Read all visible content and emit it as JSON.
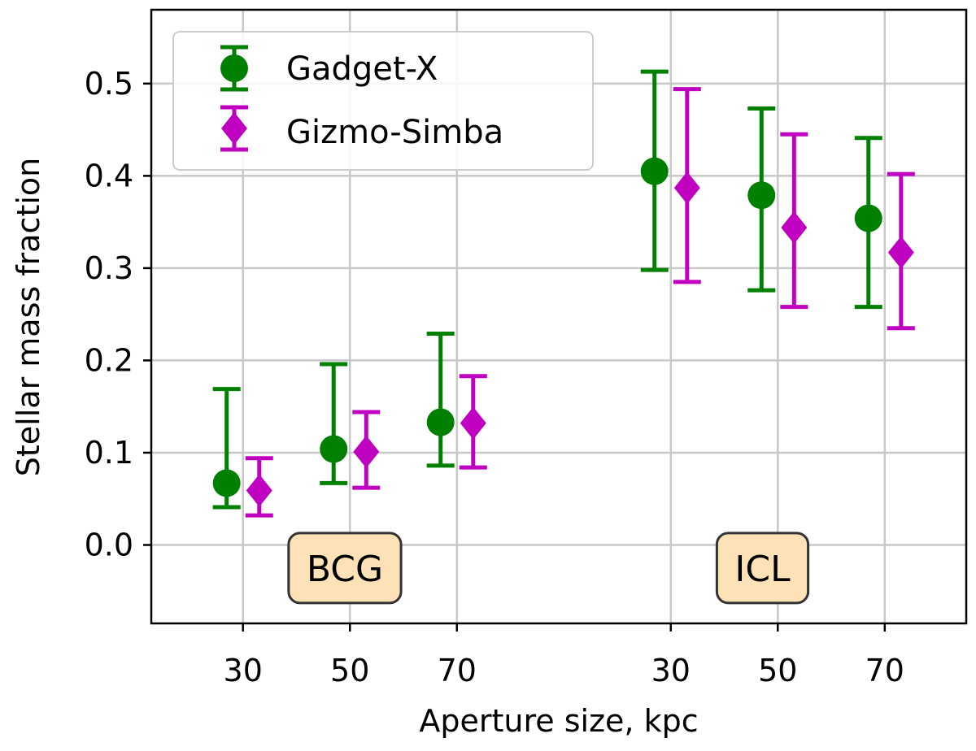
{
  "chart_data": {
    "type": "scatter",
    "title": "",
    "xlabel": "Aperture size, kpc",
    "ylabel": "Stellar mass fraction",
    "ylim": [
      -0.085,
      0.58
    ],
    "yticks": [
      0.0,
      0.1,
      0.2,
      0.3,
      0.4,
      0.5
    ],
    "ytick_labels": [
      "0.0",
      "0.1",
      "0.2",
      "0.3",
      "0.4",
      "0.5"
    ],
    "xlim": [
      0.0,
      8.0
    ],
    "xtick_positions": [
      0.9,
      1.95,
      3.0,
      5.1,
      6.15,
      7.2
    ],
    "xtick_labels": [
      "30",
      "50",
      "70",
      "30",
      "50",
      "70"
    ],
    "grid": true,
    "legend_position": "top-left",
    "groups": [
      {
        "label": "BCG",
        "label_x": 1.9,
        "label_y": -0.025
      },
      {
        "label": "ICL",
        "label_x": 6.0,
        "label_y": -0.025
      }
    ],
    "series": [
      {
        "name": "Gadget-X",
        "color": "#008000",
        "marker": "circle",
        "x": [
          0.74,
          1.79,
          2.84,
          4.94,
          5.99,
          7.04
        ],
        "values": [
          0.067,
          0.104,
          0.133,
          0.405,
          0.379,
          0.354
        ],
        "err_low": [
          0.041,
          0.067,
          0.086,
          0.298,
          0.276,
          0.258
        ],
        "err_high": [
          0.169,
          0.196,
          0.229,
          0.513,
          0.473,
          0.441
        ]
      },
      {
        "name": "Gizmo-Simba",
        "color": "#c000c0",
        "marker": "diamond",
        "x": [
          1.06,
          2.11,
          3.16,
          5.26,
          6.31,
          7.36
        ],
        "values": [
          0.059,
          0.101,
          0.132,
          0.387,
          0.344,
          0.317
        ],
        "err_low": [
          0.032,
          0.062,
          0.084,
          0.285,
          0.258,
          0.235
        ],
        "err_high": [
          0.094,
          0.144,
          0.183,
          0.494,
          0.445,
          0.402
        ]
      }
    ]
  }
}
